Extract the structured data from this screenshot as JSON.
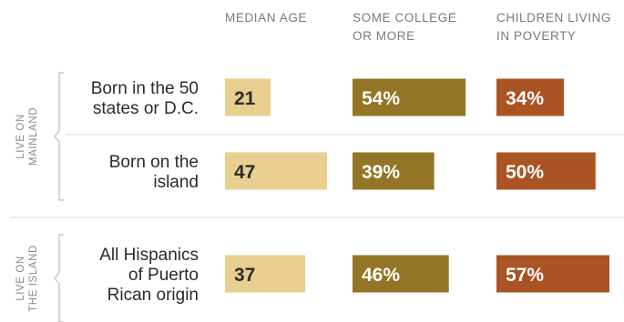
{
  "chart_data": {
    "type": "bar",
    "columns": [
      {
        "key": "median_age",
        "header": [
          "MEDIAN AGE"
        ],
        "color": "#e9cf8f",
        "max": 47,
        "unit": ""
      },
      {
        "key": "some_college",
        "header": [
          "SOME COLLEGE",
          "OR MORE"
        ],
        "color": "#947526",
        "max": 57,
        "unit": "%"
      },
      {
        "key": "child_poverty",
        "header": [
          "CHILDREN LIVING",
          "IN POVERTY"
        ],
        "color": "#aa5423",
        "max": 57,
        "unit": "%"
      }
    ],
    "groups": [
      {
        "label": [
          "LIVE ON",
          "MAINLAND"
        ],
        "rows": [
          0,
          1
        ]
      },
      {
        "label": [
          "LIVE ON",
          "THE ISLAND"
        ],
        "rows": [
          2
        ]
      }
    ],
    "rows": [
      {
        "label": [
          "Born in the 50",
          "states or D.C."
        ],
        "values": [
          21,
          54,
          34
        ]
      },
      {
        "label": [
          "Born on the",
          "island"
        ],
        "values": [
          47,
          39,
          50
        ]
      },
      {
        "label": [
          "All Hispanics",
          "of Puerto",
          "Rican origin"
        ],
        "values": [
          37,
          46,
          57
        ]
      }
    ]
  }
}
